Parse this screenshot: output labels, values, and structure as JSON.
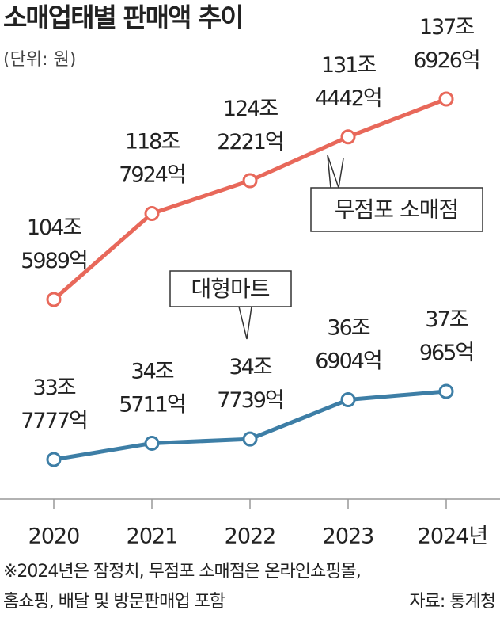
{
  "chart_data": {
    "type": "line",
    "title": "소매업태별 판매액 추이",
    "subtitle": "(단위: 원)",
    "categories": [
      "2020",
      "2021",
      "2022",
      "2023",
      "2024년"
    ],
    "series": [
      {
        "name": "무점포 소매점",
        "color": "#e8685a",
        "values": [
          104.5989,
          118.7924,
          124.2221,
          131.4442,
          137.6926
        ],
        "value_labels": [
          [
            "104조",
            "5989억"
          ],
          [
            "118조",
            "7924억"
          ],
          [
            "124조",
            "2221억"
          ],
          [
            "131조",
            "4442억"
          ],
          [
            "137조",
            "6926억"
          ]
        ]
      },
      {
        "name": "대형마트",
        "color": "#3d7ea6",
        "values": [
          33.7777,
          34.5711,
          34.7739,
          36.6904,
          37.0965
        ],
        "value_labels": [
          [
            "33조",
            "7777억"
          ],
          [
            "34조",
            "5711억"
          ],
          [
            "34조",
            "7739억"
          ],
          [
            "36조",
            "6904억"
          ],
          [
            "37조",
            "965억"
          ]
        ]
      }
    ],
    "notes": [
      "※2024년은 잠정치, 무점포 소매점은 온라인쇼핑몰,",
      "홈쇼핑, 배달 및 방문판매업 포함"
    ],
    "source": "자료: 통계청"
  }
}
